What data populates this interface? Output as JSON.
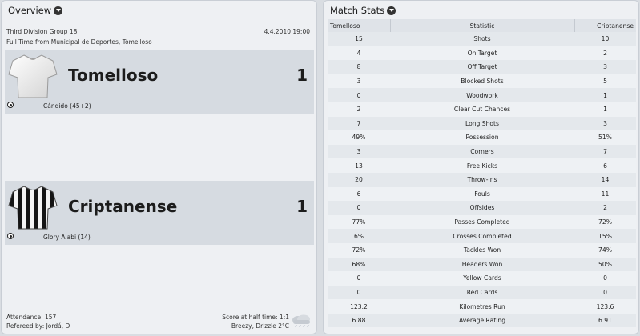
{
  "overview": {
    "title": "Overview",
    "competition": "Third Division Group 18",
    "date": "4.4.2010 19:00",
    "venue_line": "Full Time from Municipal de Deportes, Tomelloso",
    "home": {
      "name": "Tomelloso",
      "score": "1",
      "scorer": "Cándido (45+2)",
      "shirt": "white"
    },
    "away": {
      "name": "Criptanense",
      "score": "1",
      "scorer": "Glory Alabi (14)",
      "shirt": "black-white-stripes"
    },
    "attendance": "Attendance: 157",
    "referee": "Refereed by: Jordá, D",
    "halftime": "Score at half time: 1:1",
    "weather": "Breezy, Drizzle 2°C",
    "weather_icon": "rain-cloud-icon"
  },
  "stats": {
    "title": "Match Stats",
    "headers": {
      "home": "Tomelloso",
      "stat": "Statistic",
      "away": "Criptanense"
    },
    "rows": [
      {
        "home": "15",
        "stat": "Shots",
        "away": "10"
      },
      {
        "home": "4",
        "stat": "On Target",
        "away": "2"
      },
      {
        "home": "8",
        "stat": "Off Target",
        "away": "3"
      },
      {
        "home": "3",
        "stat": "Blocked Shots",
        "away": "5"
      },
      {
        "home": "0",
        "stat": "Woodwork",
        "away": "1"
      },
      {
        "home": "2",
        "stat": "Clear Cut Chances",
        "away": "1"
      },
      {
        "home": "7",
        "stat": "Long Shots",
        "away": "3"
      },
      {
        "home": "49%",
        "stat": "Possession",
        "away": "51%"
      },
      {
        "home": "3",
        "stat": "Corners",
        "away": "7"
      },
      {
        "home": "13",
        "stat": "Free Kicks",
        "away": "6"
      },
      {
        "home": "20",
        "stat": "Throw-Ins",
        "away": "14"
      },
      {
        "home": "6",
        "stat": "Fouls",
        "away": "11"
      },
      {
        "home": "0",
        "stat": "Offsides",
        "away": "2"
      },
      {
        "home": "77%",
        "stat": "Passes Completed",
        "away": "72%"
      },
      {
        "home": "6%",
        "stat": "Crosses Completed",
        "away": "15%"
      },
      {
        "home": "72%",
        "stat": "Tackles Won",
        "away": "74%"
      },
      {
        "home": "68%",
        "stat": "Headers Won",
        "away": "50%"
      },
      {
        "home": "0",
        "stat": "Yellow Cards",
        "away": "0"
      },
      {
        "home": "0",
        "stat": "Red Cards",
        "away": "0"
      },
      {
        "home": "123.2",
        "stat": "Kilometres Run",
        "away": "123.6"
      },
      {
        "home": "6.88",
        "stat": "Average Rating",
        "away": "6.91"
      }
    ]
  }
}
